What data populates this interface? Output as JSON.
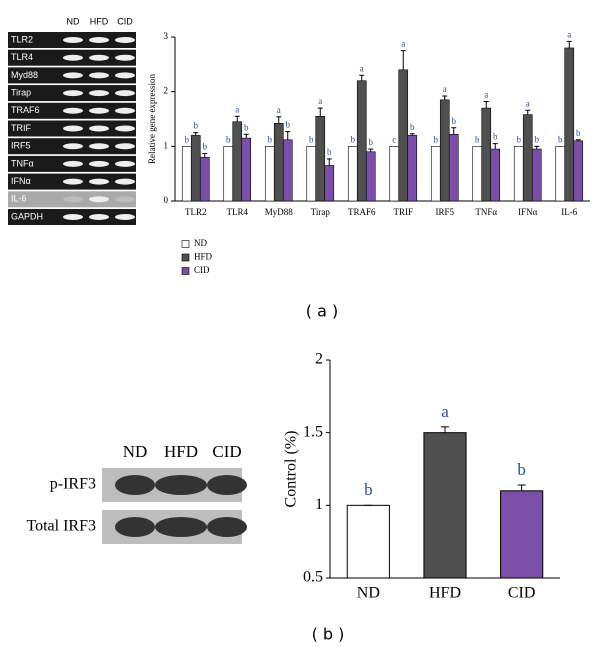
{
  "chart_data": [
    {
      "type": "bar",
      "y_label": "Relative gene expression",
      "categories": [
        "TLR2",
        "TLR4",
        "MyD88",
        "Tirap",
        "TRAF6",
        "TRIF",
        "IRF5",
        "TNFα",
        "IFNα",
        "IL-6"
      ],
      "series": [
        {
          "name": "ND",
          "color": "#ffffff",
          "values": [
            1,
            1,
            1,
            1,
            1,
            1,
            1,
            1,
            1,
            1
          ],
          "letters": [
            "b",
            "b",
            "b",
            "b",
            "b",
            "c",
            "b",
            "b",
            "b",
            "b"
          ]
        },
        {
          "name": "HFD",
          "color": "#505050",
          "values": [
            1.2,
            1.45,
            1.42,
            1.55,
            2.2,
            2.4,
            1.85,
            1.7,
            1.58,
            2.8
          ],
          "errors": [
            0.05,
            0.1,
            0.12,
            0.15,
            0.1,
            0.35,
            0.07,
            0.12,
            0.08,
            0.12
          ],
          "letters": [
            "b",
            "a",
            "a",
            "a",
            "a",
            "a",
            "a",
            "a",
            "a",
            "a"
          ]
        },
        {
          "name": "CID",
          "color": "#7b4fa8",
          "values": [
            0.8,
            1.15,
            1.12,
            0.65,
            0.9,
            1.2,
            1.22,
            0.95,
            0.95,
            1.1
          ],
          "errors": [
            0.07,
            0.07,
            0.15,
            0.12,
            0.05,
            0.03,
            0.12,
            0.1,
            0.05,
            0.02
          ],
          "letters": [
            "b",
            "b",
            "b",
            "b",
            "b",
            "b",
            "b",
            "b",
            "b",
            "b"
          ]
        }
      ],
      "ylim": [
        0,
        3
      ],
      "yticks": [
        0,
        1,
        2,
        3
      ],
      "caption": "( a )"
    },
    {
      "type": "bar",
      "y_label": "Control (%)",
      "categories": [
        "ND",
        "HFD",
        "CID"
      ],
      "values": [
        1,
        1.5,
        1.1
      ],
      "errors": [
        0,
        0.04,
        0.04
      ],
      "letters": [
        "b",
        "a",
        "b"
      ],
      "colors": [
        "#ffffff",
        "#505050",
        "#7b4fa8"
      ],
      "ylim": [
        0.5,
        2
      ],
      "yticks": [
        0.5,
        1,
        1.5,
        2
      ],
      "caption": "( b )"
    }
  ],
  "gel_a": {
    "lanes": [
      "ND",
      "HFD",
      "CID"
    ],
    "rows": [
      "TLR2",
      "TLR4",
      "Myd88",
      "Tirap",
      "TRAF6",
      "TRIF",
      "IRF5",
      "TNFα",
      "IFNα",
      "IL-6",
      "GAPDH"
    ]
  },
  "gel_b": {
    "lanes": [
      "ND",
      "HFD",
      "CID"
    ],
    "rows": [
      "p-IRF3",
      "Total IRF3"
    ]
  }
}
